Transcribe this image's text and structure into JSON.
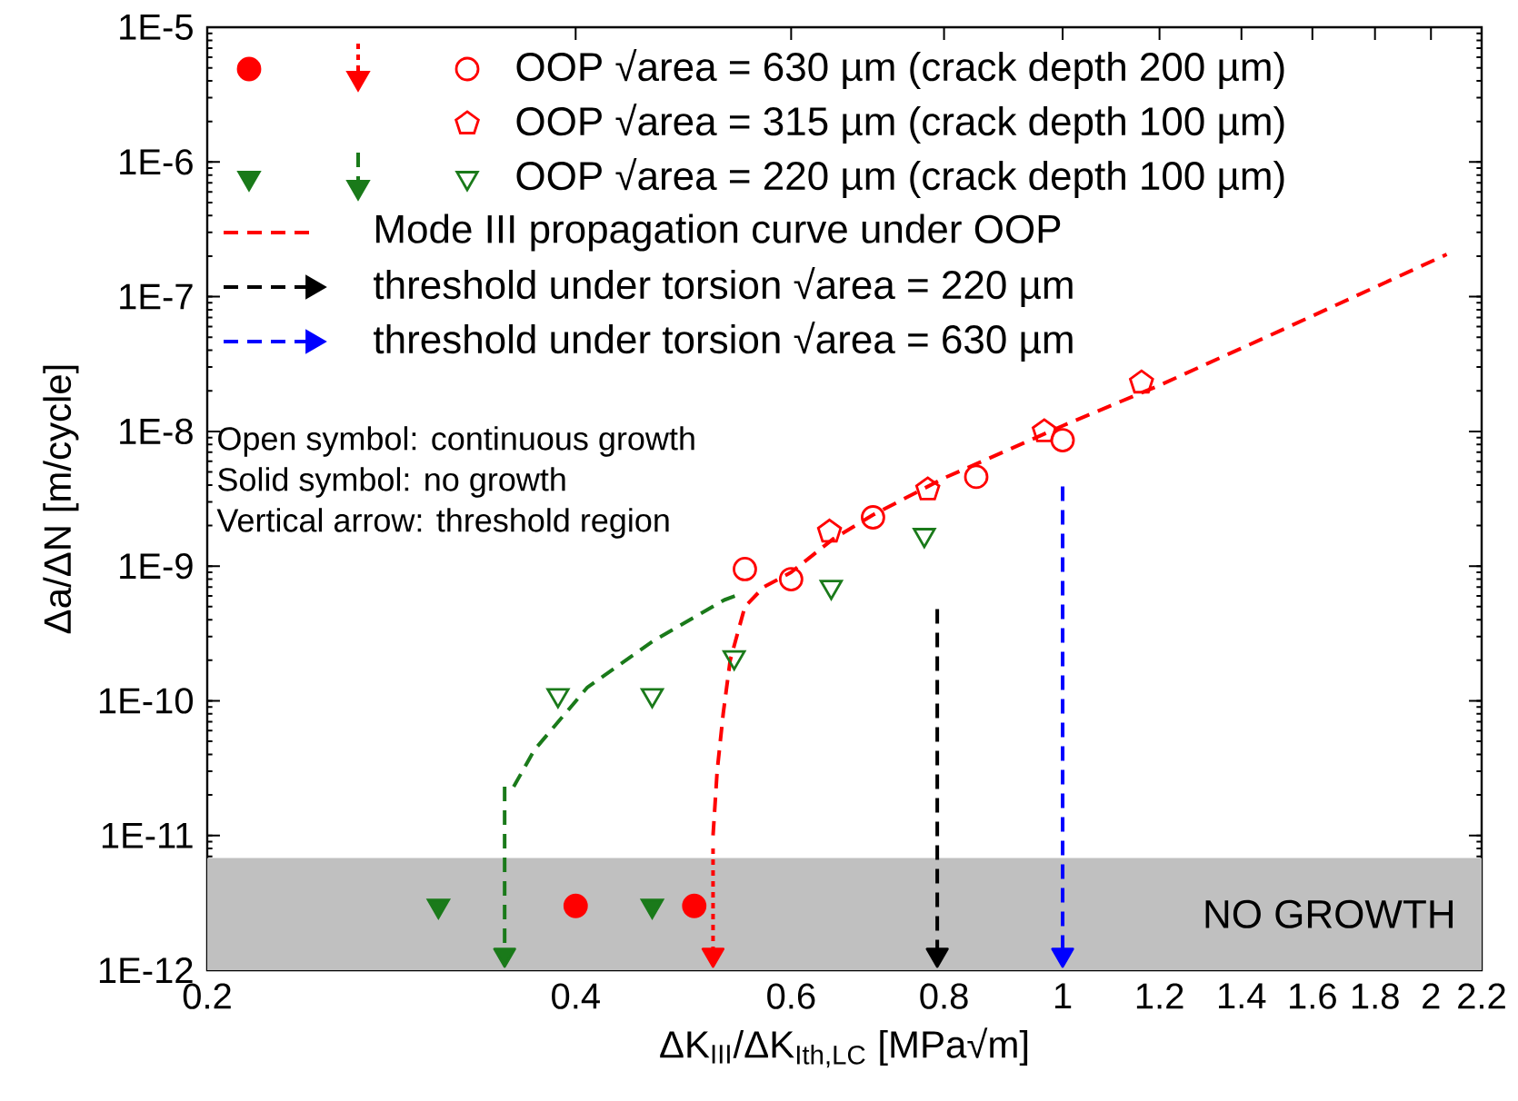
{
  "chart_data": {
    "type": "line",
    "xlabel": "ΔK$_{III}$/ΔK$_{Ith,LC}$ [MPa√m]",
    "ylabel": "Δa/ΔN [m/cycle]",
    "log": "xy",
    "legend": "top",
    "xlim": [
      0.2,
      2.2
    ],
    "ylim": [
      1e-12,
      1e-05
    ],
    "xticks": [
      0.2,
      0.4,
      0.6,
      0.8,
      1,
      1.2,
      1.4,
      1.6,
      1.8,
      2,
      2.2
    ],
    "yticks": [
      {
        "value": 1e-12,
        "label": "1E-12"
      },
      {
        "value": 1e-11,
        "label": "1E-11"
      },
      {
        "value": 1e-10,
        "label": "1E-10"
      },
      {
        "value": 1e-09,
        "label": "1E-9"
      },
      {
        "value": 1e-08,
        "label": "1E-8"
      },
      {
        "value": 1e-07,
        "label": "1E-7"
      },
      {
        "value": 1e-06,
        "label": "1E-6"
      },
      {
        "value": 1e-05,
        "label": "1E-5"
      }
    ],
    "bands": [
      {
        "axis": "y",
        "from": 1e-12,
        "to": 6.8e-12,
        "label": "NO GROWTH",
        "color": "#c0c0c0"
      }
    ],
    "annotations": [
      "Open symbol:  continuous growth",
      "Solid symbol:   no growth",
      "Vertical arrow:  threshold region"
    ],
    "series": [
      {
        "name": "OOP √area = 630 µm (crack depth 200 µm)",
        "type": "scatter",
        "marker": "circle",
        "color": "#ff0000",
        "x": [
          0.55,
          0.6,
          0.7,
          0.85,
          1.0
        ],
        "values": [
          9.5e-10,
          8e-10,
          2.3e-09,
          4.6e-09,
          8.6e-09
        ]
      },
      {
        "name": "OOP √area = 315 µm (crack depth 100 µm)",
        "type": "scatter",
        "color": "#ff0000",
        "x": [
          0.645,
          0.776,
          0.966,
          1.16
        ],
        "values": [
          1.8e-09,
          3.7e-09,
          1e-08,
          2.3e-08
        ]
      },
      {
        "name": "OOP √area = 220 µm (crack depth 100 µm)",
        "type": "scatter",
        "marker": "triangle",
        "color": "#1a7a1a",
        "x": [
          0.387,
          0.462,
          0.539,
          0.647,
          0.771
        ],
        "values": [
          1.1e-10,
          1.1e-10,
          2.1e-10,
          7e-10,
          1.7e-09
        ]
      },
      {
        "name": "Mode III propagation curve under OOP",
        "line_style": "dashed",
        "color": "#ff0000",
        "x": [
          0.518,
          0.522,
          0.528,
          0.535,
          0.55,
          0.57,
          0.6,
          0.65,
          0.7,
          0.8,
          1.0,
          1.2,
          1.5,
          2.06
        ],
        "values": [
          1e-11,
          3e-11,
          8e-11,
          2e-10,
          5e-10,
          7e-10,
          9e-10,
          1.6e-09,
          2.4e-09,
          4.5e-09,
          1.1e-08,
          2.2e-08,
          5.5e-08,
          2.06e-07
        ]
      },
      {
        "name": "threshold under torsion √area = 220 µm",
        "line_style": "dashed",
        "marker": "triangle",
        "color": "#000000",
        "x": [
          0.79,
          0.79
        ],
        "values": [
          4.8e-10,
          1.3e-12
        ]
      },
      {
        "name": "threshold under torsion √area = 630 µm",
        "line_style": "dashed",
        "marker": "triangle",
        "color": "#0000ff",
        "x": [
          1,
          1
        ],
        "values": [
          3.9e-09,
          1.3e-12
        ]
      },
      {
        "type": "scatter",
        "marker": "circle",
        "color": "#ff0000",
        "x": [
          0.4,
          0.5
        ],
        "values": [
          3e-12,
          3e-12
        ]
      },
      {
        "line_style": "dotted",
        "marker": "triangle",
        "color": "#ff0000",
        "x": [
          0.518,
          0.518
        ],
        "values": [
          8e-12,
          1.3e-12
        ]
      },
      {
        "type": "scatter",
        "marker": "triangle",
        "color": "#1a7a1a",
        "x": [
          0.309,
          0.462
        ],
        "values": [
          3e-12,
          3e-12
        ]
      },
      {
        "line_style": "dashed",
        "color": "#1a7a1a",
        "x": [
          0.356,
          0.37,
          0.409,
          0.462,
          0.529,
          0.54
        ],
        "values": [
          2.3e-11,
          4.3e-11,
          1.26e-10,
          2.75e-10,
          5.6e-10,
          6e-10
        ]
      },
      {
        "line_style": "dashed",
        "marker": "triangle",
        "color": "#1a7a1a",
        "x": [
          0.35,
          0.35
        ],
        "values": [
          2.3e-11,
          1.3e-12
        ]
      }
    ]
  }
}
